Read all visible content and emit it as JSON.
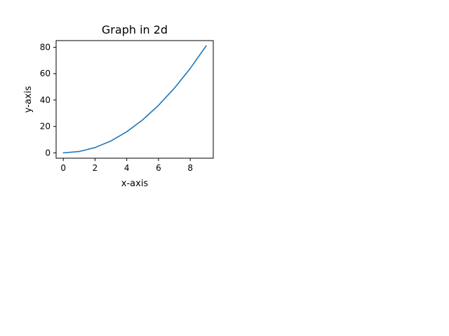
{
  "chart_data": {
    "type": "line",
    "title": "Graph in 2d",
    "xlabel": "x-axis",
    "ylabel": "y-axis",
    "xlim": [
      -0.45,
      9.45
    ],
    "ylim": [
      -4.05,
      85.05
    ],
    "xticks": [
      0,
      2,
      4,
      6,
      8
    ],
    "yticks": [
      0,
      20,
      40,
      60,
      80
    ],
    "grid": false,
    "series": [
      {
        "color": "#1f77b4",
        "x": [
          0,
          1,
          2,
          3,
          4,
          5,
          6,
          7,
          8,
          9
        ],
        "y": [
          0,
          1,
          4,
          9,
          16,
          25,
          36,
          49,
          64,
          81
        ]
      }
    ]
  }
}
